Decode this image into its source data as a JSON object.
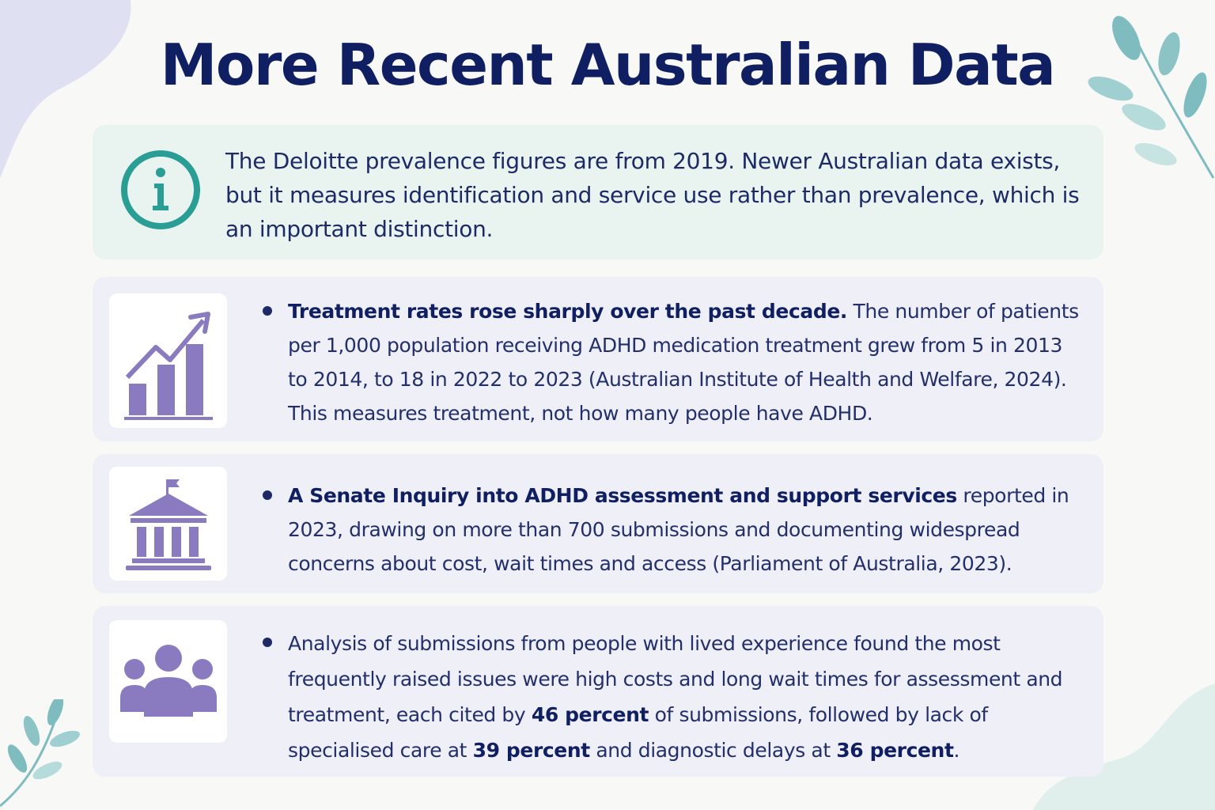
{
  "title": "More Recent Australian Data",
  "colors": {
    "background": "#f8f8f7",
    "title": "#0f1f62",
    "info_card": "#e9f4f1",
    "info_icon": "#2a9d94",
    "item_card": "#efeff8",
    "icon_purple": "#8a7bc1",
    "leaf": "#6fb5b8"
  },
  "info": {
    "icon": "info-icon",
    "text": "The Deloitte prevalence figures are from 2019. Newer Australian data exists, but it measures identification and service use rather than prevalence, which is an important distinction."
  },
  "items": [
    {
      "icon": "bar-chart-trend-icon",
      "bold": "Treatment rates rose sharply over the past decade.",
      "text": " The number of patients per 1,000 population receiving ADHD medication treatment grew from 5 in 2013 to 2014, to 18 in 2022 to 2023 (Australian Institute of Health and Welfare, 2024). This measures treatment, not how many people have ADHD."
    },
    {
      "icon": "government-building-icon",
      "bold": "A Senate Inquiry into ADHD assessment and support services",
      "text": " reported in 2023, drawing on more than 700 submissions and documenting widespread concerns about cost, wait times and access (Parliament of Australia, 2023)."
    },
    {
      "icon": "people-group-icon",
      "t1": "Analysis of submissions from people with lived experience found the most frequently raised issues were high costs and long wait times for assessment and treatment, each cited by ",
      "b1": "46 percent",
      "t2": " of submissions, followed by lack of specialised care at ",
      "b2": "39 percent",
      "t3": " and diagnostic delays at ",
      "b3": "36 percent",
      "t4": "."
    }
  ]
}
